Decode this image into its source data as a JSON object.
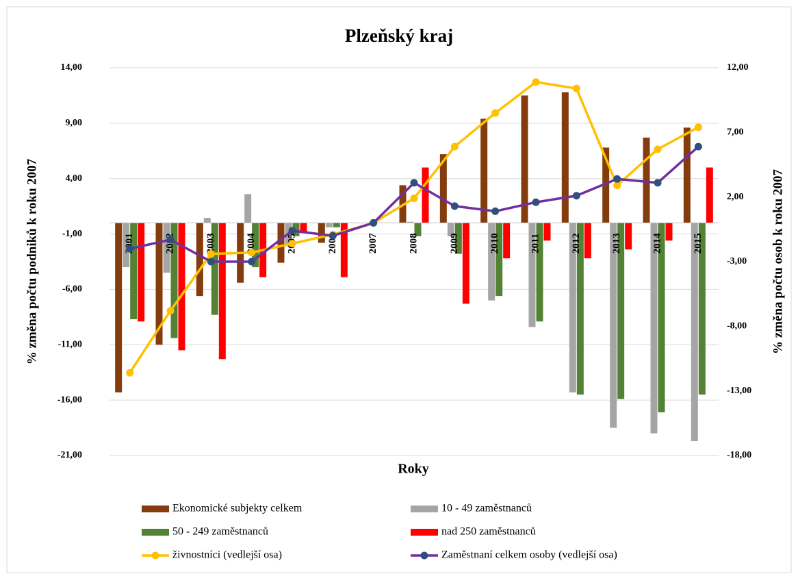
{
  "chart_data": {
    "type": "bar_line",
    "title": "Plzeňský kraj",
    "x_label": "Roky",
    "y_label": "% změna počtu podniků k roku  2007",
    "y2_label": "% změna počtu osob k roku 2007",
    "categories": [
      "2001",
      "2002",
      "2003",
      "2004",
      "2005",
      "2006",
      "2007",
      "2008",
      "2009",
      "2010",
      "2011",
      "2012",
      "2013",
      "2014",
      "2015"
    ],
    "ylim": [
      -21,
      14
    ],
    "yticks": [
      {
        "value": 14,
        "label": "14,00"
      },
      {
        "value": 9,
        "label": "9,00"
      },
      {
        "value": 4,
        "label": "4,00"
      },
      {
        "value": -1,
        "label": "-1,00"
      },
      {
        "value": -6,
        "label": "-6,00"
      },
      {
        "value": -11,
        "label": "-11,00"
      },
      {
        "value": -16,
        "label": "-16,00"
      },
      {
        "value": -21,
        "label": "-21,00"
      }
    ],
    "y2lim": [
      -18,
      12
    ],
    "y2ticks": [
      {
        "value": 12,
        "label": "12,00"
      },
      {
        "value": 7,
        "label": "7,00"
      },
      {
        "value": 2,
        "label": "2,00"
      },
      {
        "value": -3,
        "label": "-3,00"
      },
      {
        "value": -8,
        "label": "-8,00"
      },
      {
        "value": -13,
        "label": "-13,00"
      },
      {
        "value": -18,
        "label": "-18,00"
      }
    ],
    "grid": true,
    "series": [
      {
        "name": "Ekonomické subjekty celkem",
        "kind": "bar",
        "color": "#843c0c",
        "values": [
          -15.3,
          -11.0,
          -6.6,
          -5.4,
          -3.6,
          -1.8,
          0,
          3.4,
          6.2,
          9.4,
          11.5,
          11.8,
          6.8,
          7.7,
          8.6
        ]
      },
      {
        "name": "10 - 49 zaměstnanců",
        "kind": "bar",
        "color": "#a5a5a5",
        "values": [
          -4.0,
          -4.5,
          0.45,
          2.6,
          -2.1,
          -0.4,
          0,
          0.1,
          -1.2,
          -7.0,
          -9.4,
          -15.3,
          -18.5,
          -19.0,
          -19.7
        ]
      },
      {
        "name": "50 - 249 zaměstnanců",
        "kind": "bar",
        "color": "#548235",
        "values": [
          -8.7,
          -10.4,
          -8.3,
          -4.0,
          -1.2,
          -0.4,
          0,
          -1.2,
          -2.8,
          -6.6,
          -8.9,
          -15.5,
          -15.9,
          -17.1,
          -15.5
        ]
      },
      {
        "name": "nad 250 zaměstnanců",
        "kind": "bar",
        "color": "#ff0000",
        "values": [
          -8.9,
          -11.5,
          -12.3,
          -4.9,
          -0.8,
          -4.9,
          0,
          5.0,
          -7.3,
          -3.2,
          -1.6,
          -3.2,
          -2.4,
          -1.6,
          5.0
        ]
      },
      {
        "name": "živnostníci (vedlejší osa)",
        "kind": "line",
        "axis": "y2",
        "color": "#ffc000",
        "values": [
          -11.6,
          -6.8,
          -2.4,
          -2.3,
          -1.6,
          -0.9,
          0,
          1.9,
          5.9,
          8.5,
          10.9,
          10.4,
          2.9,
          5.7,
          7.4
        ]
      },
      {
        "name": "Zaměstnaní celkem osoby (vedlejší osa)",
        "kind": "line",
        "axis": "y2",
        "color": "#7030a0",
        "marker_color": "#2f4f7f",
        "values": [
          -2.0,
          -1.3,
          -3.0,
          -3.0,
          -0.6,
          -1.0,
          0,
          3.1,
          1.3,
          0.9,
          1.6,
          2.1,
          3.4,
          3.1,
          5.9
        ]
      }
    ]
  }
}
